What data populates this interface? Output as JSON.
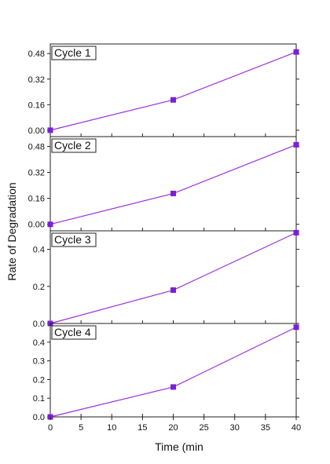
{
  "chart_data": {
    "type": "line",
    "layout": "stacked-panels",
    "shared_x": true,
    "xlabel": "Time (min",
    "ylabel": "Rate of Degradation",
    "xlim": [
      0,
      40
    ],
    "xticks": [
      0,
      5,
      10,
      15,
      20,
      25,
      30,
      35,
      40
    ],
    "line_color": "#9b30e0",
    "marker_color": "#7b1fd6",
    "marker": "square",
    "panels": [
      {
        "label": "Cycle 1",
        "x": [
          0,
          20,
          40
        ],
        "y": [
          0.0,
          0.19,
          0.49
        ],
        "ylim": [
          -0.04,
          0.54
        ],
        "yticks": [
          0.0,
          0.16,
          0.32,
          0.48
        ],
        "ytick_labels": [
          "0.00",
          "0.16",
          "0.32",
          "0.48"
        ]
      },
      {
        "label": "Cycle 2",
        "x": [
          0,
          20,
          40
        ],
        "y": [
          0.0,
          0.19,
          0.49
        ],
        "ylim": [
          -0.04,
          0.54
        ],
        "yticks": [
          0.0,
          0.16,
          0.32,
          0.48
        ],
        "ytick_labels": [
          "0.00",
          "0.16",
          "0.32",
          "0.48"
        ]
      },
      {
        "label": "Cycle 3",
        "x": [
          0,
          20,
          40
        ],
        "y": [
          0.0,
          0.18,
          0.49
        ],
        "ylim": [
          0.0,
          0.5
        ],
        "yticks": [
          0.0,
          0.2,
          0.4
        ],
        "ytick_labels": [
          "0.0",
          "0.2",
          "0.4"
        ]
      },
      {
        "label": "Cycle 4",
        "x": [
          0,
          20,
          40
        ],
        "y": [
          0.0,
          0.16,
          0.48
        ],
        "ylim": [
          0.0,
          0.5
        ],
        "yticks": [
          0.0,
          0.1,
          0.2,
          0.3,
          0.4
        ],
        "ytick_labels": [
          "0.0",
          "0.1",
          "0.2",
          "0.3",
          "0.4"
        ]
      }
    ]
  }
}
